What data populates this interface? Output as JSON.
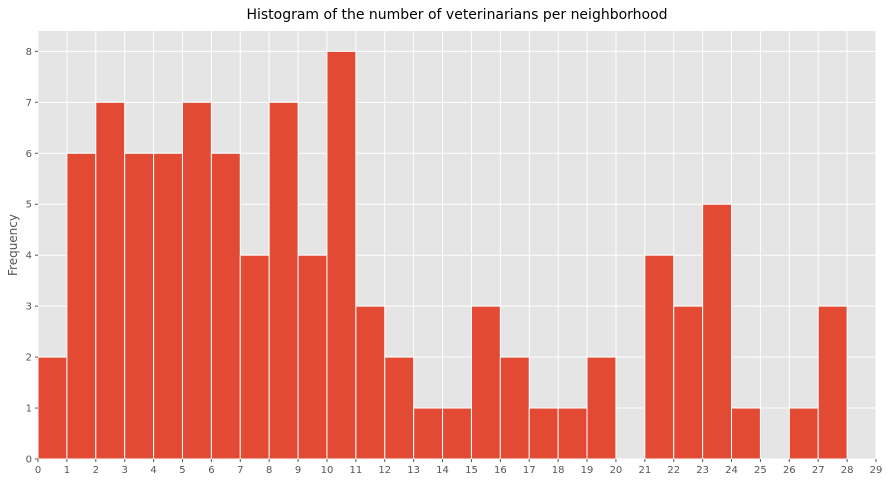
{
  "chart_data": {
    "type": "bar",
    "title": "Histogram of the number of veterinarians per neighborhood",
    "xlabel": "",
    "ylabel": "Frequency",
    "x_ticks": [
      0,
      1,
      2,
      3,
      4,
      5,
      6,
      7,
      8,
      9,
      10,
      11,
      12,
      13,
      14,
      15,
      16,
      17,
      18,
      19,
      20,
      21,
      22,
      23,
      24,
      25,
      26,
      27,
      28,
      29
    ],
    "y_ticks": [
      0,
      1,
      2,
      3,
      4,
      5,
      6,
      7,
      8
    ],
    "xlim": [
      0,
      29
    ],
    "ylim": [
      0,
      8.4
    ],
    "bins": [
      {
        "x0": 0,
        "x1": 1,
        "value": 2
      },
      {
        "x0": 1,
        "x1": 2,
        "value": 6
      },
      {
        "x0": 2,
        "x1": 3,
        "value": 7
      },
      {
        "x0": 3,
        "x1": 4,
        "value": 6
      },
      {
        "x0": 4,
        "x1": 5,
        "value": 6
      },
      {
        "x0": 5,
        "x1": 6,
        "value": 7
      },
      {
        "x0": 6,
        "x1": 7,
        "value": 6
      },
      {
        "x0": 7,
        "x1": 8,
        "value": 4
      },
      {
        "x0": 8,
        "x1": 9,
        "value": 7
      },
      {
        "x0": 9,
        "x1": 10,
        "value": 4
      },
      {
        "x0": 10,
        "x1": 11,
        "value": 8
      },
      {
        "x0": 11,
        "x1": 12,
        "value": 3
      },
      {
        "x0": 12,
        "x1": 13,
        "value": 2
      },
      {
        "x0": 13,
        "x1": 14,
        "value": 1
      },
      {
        "x0": 14,
        "x1": 15,
        "value": 1
      },
      {
        "x0": 15,
        "x1": 16,
        "value": 3
      },
      {
        "x0": 16,
        "x1": 17,
        "value": 2
      },
      {
        "x0": 17,
        "x1": 18,
        "value": 1
      },
      {
        "x0": 18,
        "x1": 19,
        "value": 1
      },
      {
        "x0": 19,
        "x1": 20,
        "value": 2
      },
      {
        "x0": 20,
        "x1": 21,
        "value": 0
      },
      {
        "x0": 21,
        "x1": 22,
        "value": 4
      },
      {
        "x0": 22,
        "x1": 23,
        "value": 3
      },
      {
        "x0": 23,
        "x1": 24,
        "value": 5
      },
      {
        "x0": 24,
        "x1": 25,
        "value": 1
      },
      {
        "x0": 25,
        "x1": 26,
        "value": 0
      },
      {
        "x0": 26,
        "x1": 27,
        "value": 1
      },
      {
        "x0": 27,
        "x1": 28,
        "value": 3
      }
    ],
    "grid": true,
    "colors": {
      "bar": "#E24A33",
      "background": "#E5E5E5",
      "grid": "#FFFFFF"
    }
  }
}
